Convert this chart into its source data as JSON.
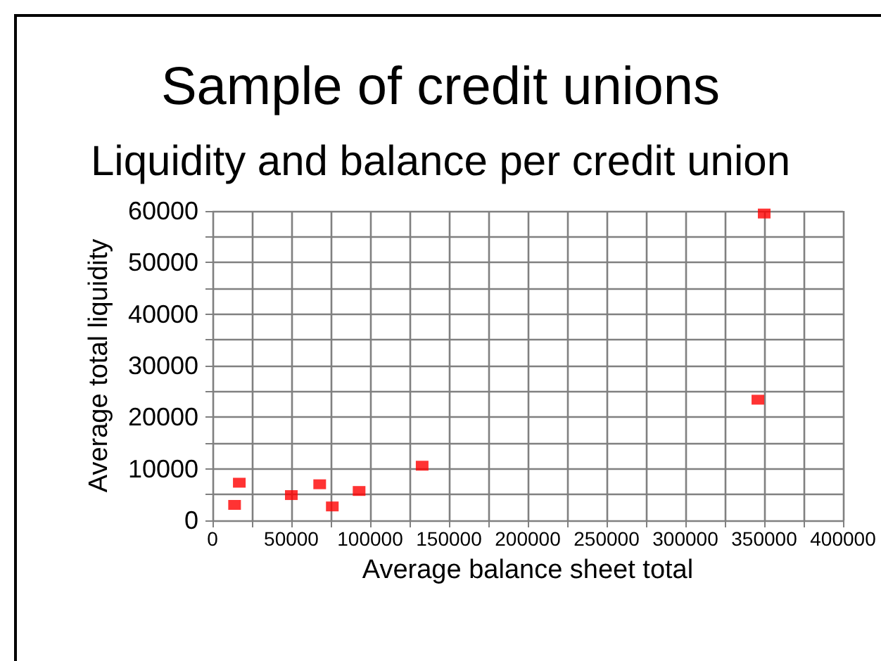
{
  "chart_data": {
    "type": "scatter",
    "title": "Sample of credit unions",
    "subtitle": "Liquidity and balance per credit union",
    "xlabel": "Average balance sheet total",
    "ylabel": "Average total liquidity",
    "x": [
      14000,
      17000,
      50000,
      68000,
      76000,
      93000,
      133000,
      346000,
      350000
    ],
    "values": [
      3000,
      7300,
      4900,
      7000,
      2700,
      5700,
      10600,
      23400,
      59500
    ],
    "color": "#ff0000",
    "marker": "square",
    "grid": true,
    "xlim": [
      0,
      400000
    ],
    "ylim": [
      0,
      60000
    ],
    "xticks": [
      0,
      {
        "value": 25000,
        "label": null
      },
      50000,
      {
        "value": 75000,
        "label": null
      },
      100000,
      {
        "value": 125000,
        "label": null
      },
      150000,
      {
        "value": 175000,
        "label": null
      },
      200000,
      {
        "value": 225000,
        "label": null
      },
      250000,
      {
        "value": 275000,
        "label": null
      },
      300000,
      {
        "value": 325000,
        "label": null
      },
      350000,
      {
        "value": 375000,
        "label": null
      },
      400000
    ],
    "yticks": [
      0,
      {
        "value": 5000,
        "label": null
      },
      10000,
      {
        "value": 15000,
        "label": null
      },
      20000,
      {
        "value": 25000,
        "label": null
      },
      30000,
      {
        "value": 35000,
        "label": null
      },
      40000,
      {
        "value": 45000,
        "label": null
      },
      50000,
      {
        "value": 55000,
        "label": null
      },
      60000
    ]
  }
}
